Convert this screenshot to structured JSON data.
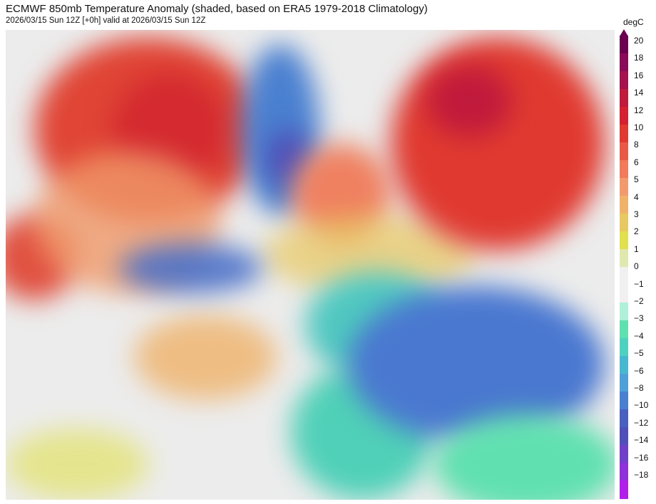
{
  "header": {
    "title": "ECMWF 850mb Temperature Anomaly (shaded, based on ERA5 1979-2018 Climatology)",
    "subtitle": "2026/03/15 Sun 12Z [+0h] valid at 2026/03/15 Sun 12Z"
  },
  "colorbar": {
    "unit": "degC",
    "levels": [
      "20",
      "18",
      "16",
      "14",
      "12",
      "10",
      "8",
      "6",
      "5",
      "4",
      "3",
      "2",
      "1",
      "0",
      "−1",
      "−2",
      "−3",
      "−4",
      "−5",
      "−6",
      "−8",
      "−10",
      "−12",
      "−14",
      "−16",
      "−18"
    ],
    "colors": [
      "#6b0050",
      "#8a0a5a",
      "#a3124f",
      "#c01a3c",
      "#d42030",
      "#e03a30",
      "#e85a45",
      "#f07a5a",
      "#f29a6e",
      "#efb26a",
      "#e8c860",
      "#e0e050",
      "#e0e8b0",
      "#f0f0f0",
      "#f0f0f0",
      "#b0f0d8",
      "#60e0b0",
      "#50d0c0",
      "#48b8d0",
      "#50a0d8",
      "#4a80d0",
      "#4a60c0",
      "#5050b8",
      "#7040c8",
      "#9030d8",
      "#b020e8"
    ]
  }
}
